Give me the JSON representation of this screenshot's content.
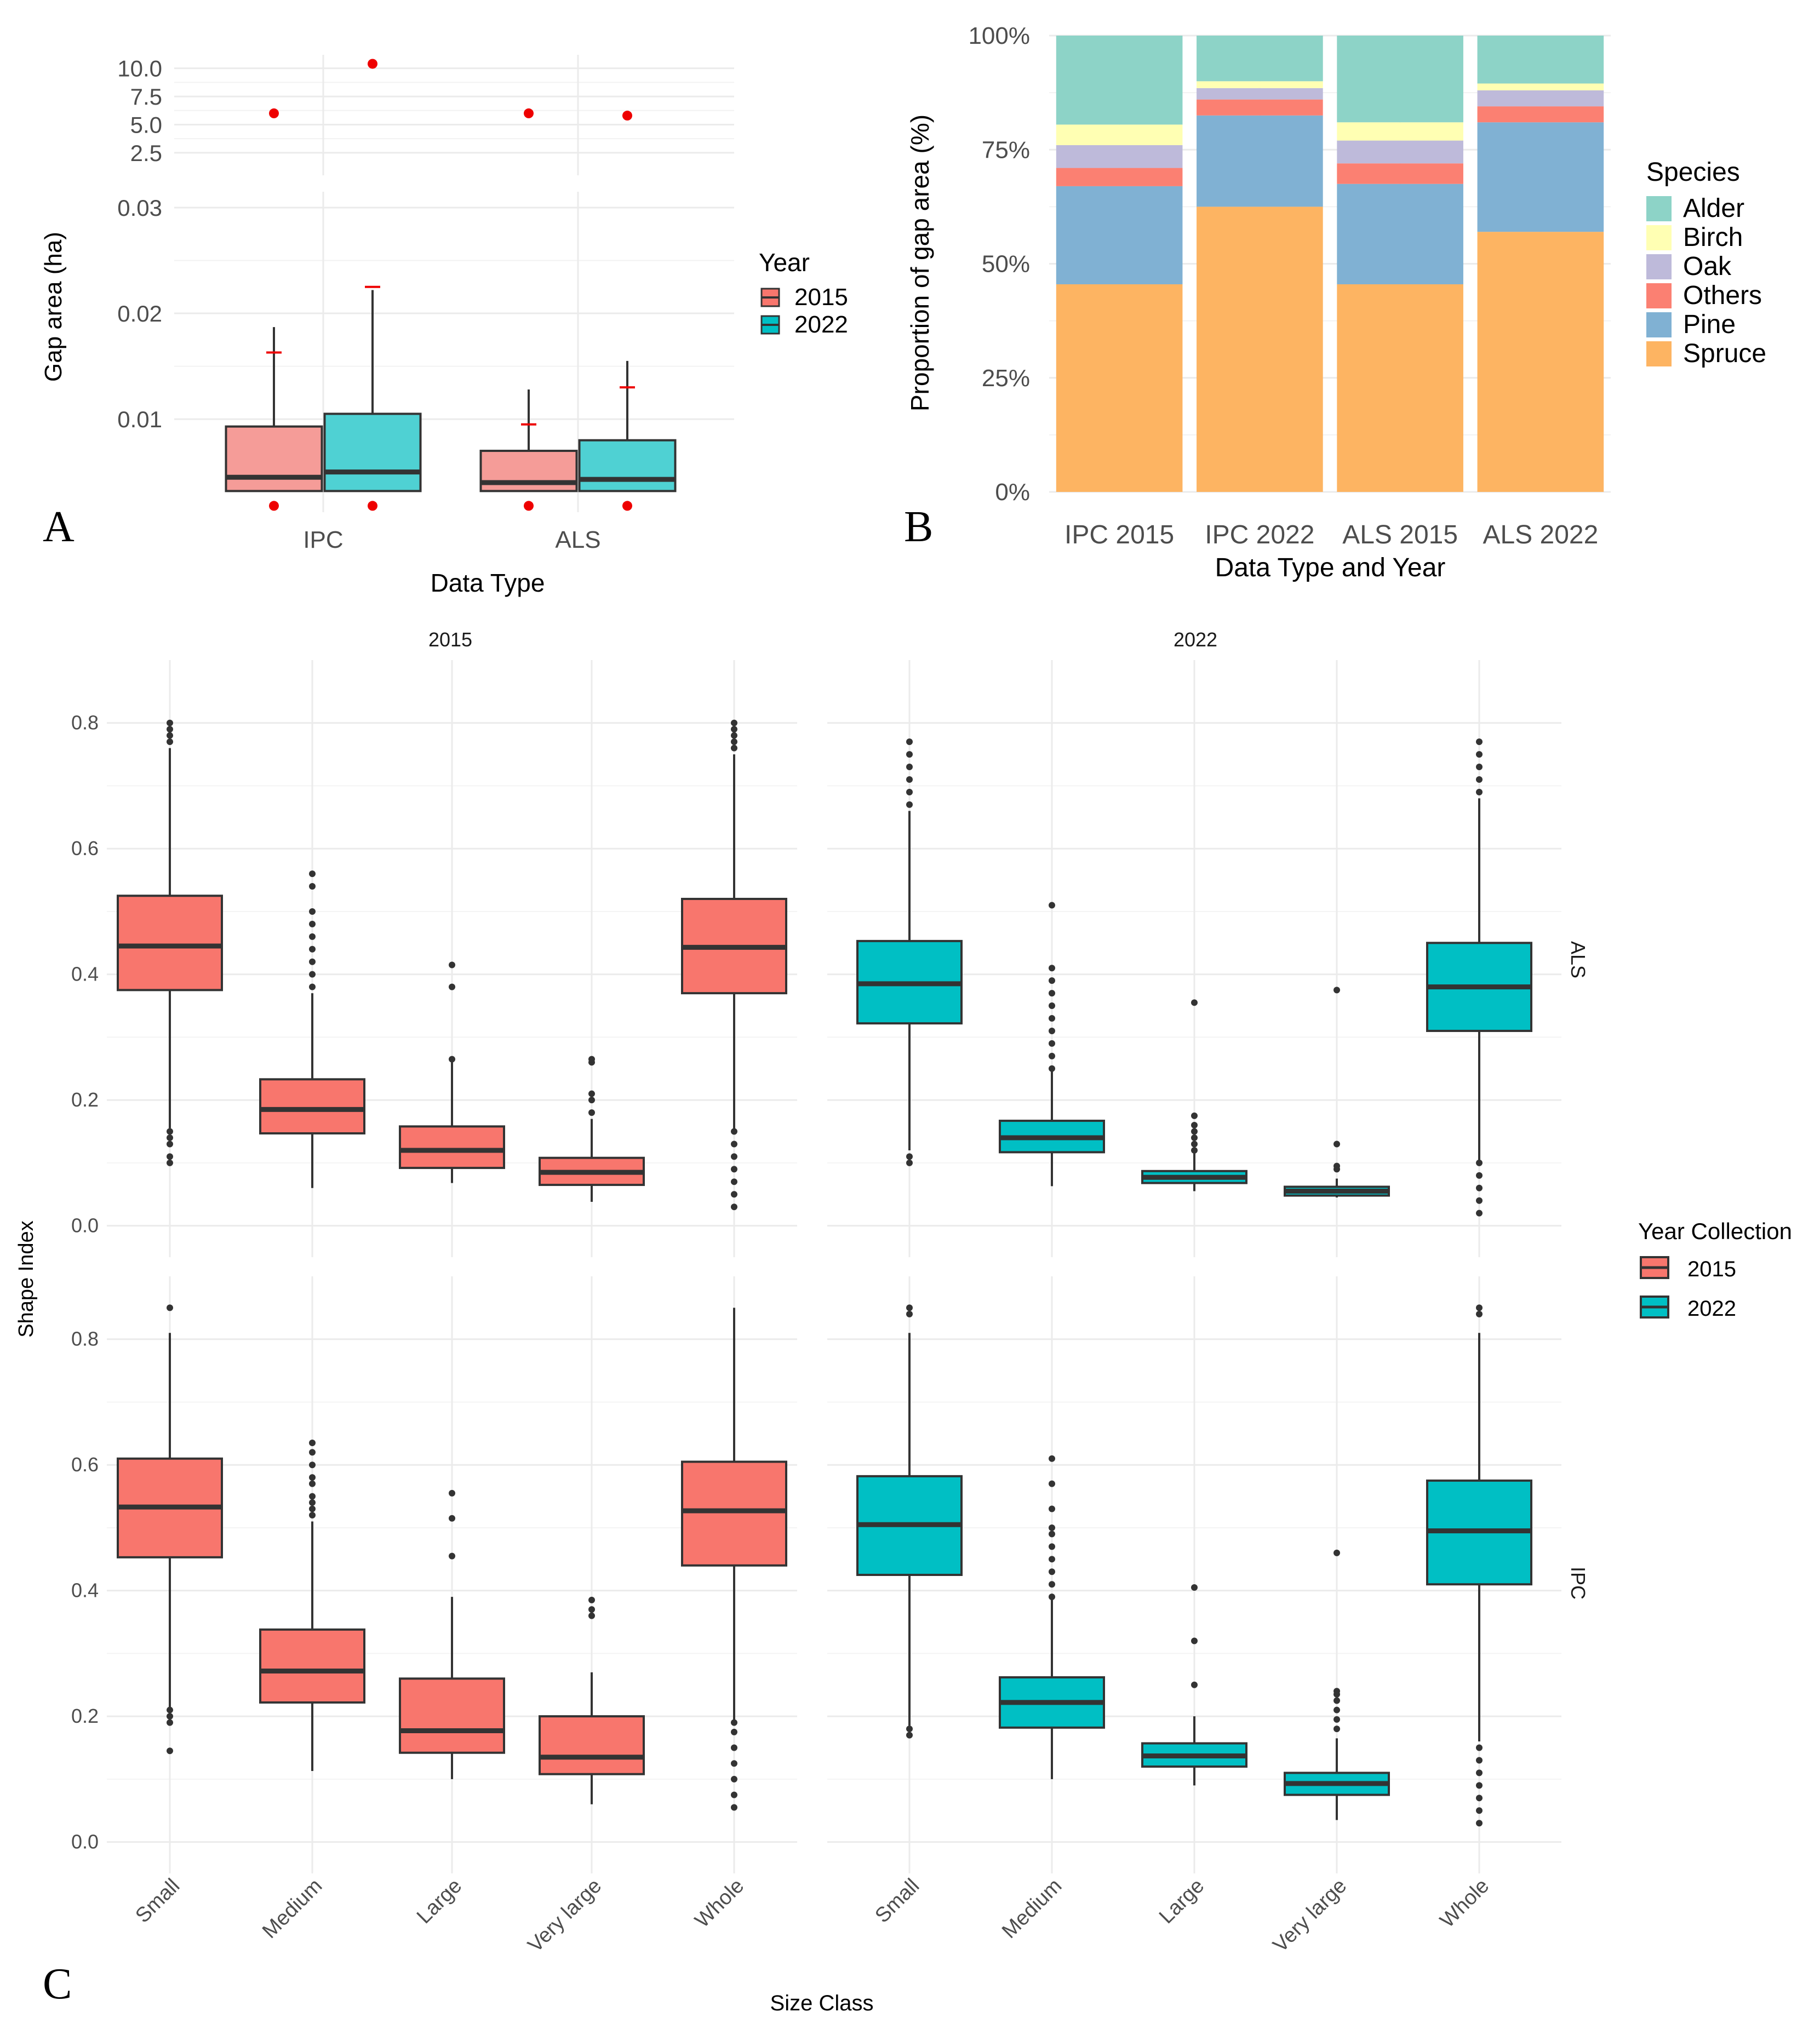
{
  "figure": {
    "panel_letters": {
      "a": "A",
      "b": "B",
      "c": "C"
    },
    "colors": {
      "c2015": "#f8766d",
      "c2015_light": "#f59c98",
      "c2022": "#00bfc4",
      "c2022_light": "#4fd1d3",
      "outlier_red": "#ee0000",
      "box_line": "#333333",
      "grid": "#ebebeb",
      "Alder": "#8dd3c7",
      "Birch": "#ffffb3",
      "Oak": "#bebada",
      "Others": "#fb8072",
      "Pine": "#80b1d3",
      "Spruce": "#fdb462"
    }
  },
  "chart_data": [
    {
      "id": "A",
      "type": "box",
      "title": "",
      "xlabel": "Data Type",
      "ylabel": "Gap area (ha)",
      "categories": [
        "IPC",
        "ALS"
      ],
      "legend": {
        "title": "Year",
        "position": "right",
        "entries": [
          "2015",
          "2022"
        ]
      },
      "upper_axis": {
        "ylim": [
          0.5,
          11.2
        ],
        "ticks": [
          2.5,
          5.0,
          7.5,
          10.0
        ],
        "tick_labels": [
          "2.5",
          "5.0",
          "7.5",
          "10.0"
        ]
      },
      "lower_axis": {
        "ylim": [
          0.0012,
          0.0315
        ],
        "ticks": [
          0.01,
          0.02,
          0.03
        ],
        "tick_labels": [
          "0.01",
          "0.02",
          "0.03"
        ]
      },
      "series": [
        {
          "name": "2015",
          "boxes": [
            {
              "category": "IPC",
              "whisker_low": 0.0032,
              "q1": 0.0032,
              "median": 0.0045,
              "q3": 0.0093,
              "whisker_high": 0.0187,
              "mean": 0.0163,
              "low_point": 0.0018,
              "extreme": 6.0
            },
            {
              "category": "ALS",
              "whisker_low": 0.0032,
              "q1": 0.0032,
              "median": 0.004,
              "q3": 0.007,
              "whisker_high": 0.0128,
              "mean": 0.0095,
              "low_point": 0.0018,
              "extreme": 6.0
            }
          ]
        },
        {
          "name": "2022",
          "boxes": [
            {
              "category": "IPC",
              "whisker_low": 0.0032,
              "q1": 0.0032,
              "median": 0.005,
              "q3": 0.0105,
              "whisker_high": 0.0222,
              "mean": 0.0225,
              "low_point": 0.0018,
              "extreme": 10.4
            },
            {
              "category": "ALS",
              "whisker_low": 0.0032,
              "q1": 0.0032,
              "median": 0.0043,
              "q3": 0.008,
              "whisker_high": 0.0155,
              "mean": 0.013,
              "low_point": 0.0018,
              "extreme": 5.8
            }
          ]
        }
      ]
    },
    {
      "id": "B",
      "type": "stacked_bar",
      "title": "",
      "xlabel": "Data Type and Year",
      "ylabel": "Proportion of gap area (%)",
      "ylim": [
        0,
        100
      ],
      "ticks": [
        0,
        25,
        50,
        75,
        100
      ],
      "tick_labels": [
        "0%",
        "25%",
        "50%",
        "75%",
        "100%"
      ],
      "categories": [
        "IPC 2015",
        "IPC 2022",
        "ALS 2015",
        "ALS 2022"
      ],
      "legend": {
        "title": "Species",
        "position": "right",
        "entries": [
          "Alder",
          "Birch",
          "Oak",
          "Others",
          "Pine",
          "Spruce"
        ]
      },
      "series": [
        {
          "name": "Spruce",
          "values": [
            45.5,
            62.5,
            45.5,
            57.0
          ]
        },
        {
          "name": "Pine",
          "values": [
            21.5,
            20.0,
            22.0,
            24.0
          ]
        },
        {
          "name": "Others",
          "values": [
            4.0,
            3.5,
            4.5,
            3.5
          ]
        },
        {
          "name": "Oak",
          "values": [
            5.0,
            2.5,
            5.0,
            3.5
          ]
        },
        {
          "name": "Birch",
          "values": [
            4.5,
            1.5,
            4.0,
            1.5
          ]
        },
        {
          "name": "Alder",
          "values": [
            19.5,
            10.0,
            19.0,
            10.5
          ]
        }
      ]
    },
    {
      "id": "C",
      "type": "box",
      "title": "",
      "xlabel": "Size Class",
      "ylabel": "Shape Index",
      "facet_cols": [
        "2015",
        "2022"
      ],
      "facet_rows": [
        "ALS",
        "IPC"
      ],
      "categories": [
        "Small",
        "Medium",
        "Large",
        "Very large",
        "Whole"
      ],
      "ylim": [
        -0.05,
        0.9
      ],
      "ticks": [
        0.0,
        0.2,
        0.4,
        0.6,
        0.8
      ],
      "tick_labels": [
        "0.0",
        "0.2",
        "0.4",
        "0.6",
        "0.8"
      ],
      "legend": {
        "title": "Year Collection",
        "position": "right",
        "entries": [
          "2015",
          "2022"
        ]
      },
      "panels": [
        {
          "row": "ALS",
          "col": "2015",
          "boxes": [
            {
              "category": "Small",
              "whisker_low": 0.155,
              "q1": 0.375,
              "median": 0.445,
              "q3": 0.525,
              "whisker_high": 0.76,
              "out_low": [
                0.1,
                0.11,
                0.13,
                0.14,
                0.15
              ],
              "out_high": [
                0.77,
                0.78,
                0.79,
                0.8
              ]
            },
            {
              "category": "Medium",
              "whisker_low": 0.06,
              "q1": 0.147,
              "median": 0.185,
              "q3": 0.233,
              "whisker_high": 0.37,
              "out_low": [],
              "out_high": [
                0.38,
                0.4,
                0.42,
                0.44,
                0.46,
                0.48,
                0.5,
                0.54,
                0.56
              ]
            },
            {
              "category": "Large",
              "whisker_low": 0.068,
              "q1": 0.092,
              "median": 0.12,
              "q3": 0.158,
              "whisker_high": 0.26,
              "out_low": [],
              "out_high": [
                0.265,
                0.38,
                0.415
              ]
            },
            {
              "category": "Very large",
              "whisker_low": 0.038,
              "q1": 0.065,
              "median": 0.085,
              "q3": 0.108,
              "whisker_high": 0.17,
              "out_low": [],
              "out_high": [
                0.18,
                0.2,
                0.21,
                0.26,
                0.265
              ]
            },
            {
              "category": "Whole",
              "whisker_low": 0.15,
              "q1": 0.37,
              "median": 0.443,
              "q3": 0.52,
              "whisker_high": 0.75,
              "out_low": [
                0.03,
                0.05,
                0.07,
                0.09,
                0.11,
                0.13,
                0.15
              ],
              "out_high": [
                0.76,
                0.77,
                0.78,
                0.79,
                0.8
              ]
            }
          ]
        },
        {
          "row": "ALS",
          "col": "2022",
          "boxes": [
            {
              "category": "Small",
              "whisker_low": 0.12,
              "q1": 0.322,
              "median": 0.385,
              "q3": 0.453,
              "whisker_high": 0.66,
              "out_low": [
                0.1,
                0.11
              ],
              "out_high": [
                0.67,
                0.69,
                0.71,
                0.73,
                0.75,
                0.77
              ]
            },
            {
              "category": "Medium",
              "whisker_low": 0.063,
              "q1": 0.117,
              "median": 0.14,
              "q3": 0.167,
              "whisker_high": 0.245,
              "out_low": [],
              "out_high": [
                0.25,
                0.27,
                0.29,
                0.31,
                0.33,
                0.35,
                0.37,
                0.39,
                0.41,
                0.51
              ]
            },
            {
              "category": "Large",
              "whisker_low": 0.055,
              "q1": 0.068,
              "median": 0.077,
              "q3": 0.087,
              "whisker_high": 0.115,
              "out_low": [],
              "out_high": [
                0.12,
                0.13,
                0.14,
                0.15,
                0.16,
                0.175,
                0.355
              ]
            },
            {
              "category": "Very large",
              "whisker_low": 0.045,
              "q1": 0.048,
              "median": 0.055,
              "q3": 0.062,
              "whisker_high": 0.075,
              "out_low": [],
              "out_high": [
                0.09,
                0.095,
                0.13,
                0.375
              ]
            },
            {
              "category": "Whole",
              "whisker_low": 0.1,
              "q1": 0.31,
              "median": 0.38,
              "q3": 0.45,
              "whisker_high": 0.68,
              "out_low": [
                0.02,
                0.04,
                0.06,
                0.08,
                0.1
              ],
              "out_high": [
                0.69,
                0.71,
                0.73,
                0.75,
                0.77
              ]
            }
          ]
        },
        {
          "row": "IPC",
          "col": "2015",
          "boxes": [
            {
              "category": "Small",
              "whisker_low": 0.215,
              "q1": 0.453,
              "median": 0.533,
              "q3": 0.61,
              "whisker_high": 0.81,
              "out_low": [
                0.145,
                0.19,
                0.2,
                0.21
              ],
              "out_high": [
                0.85
              ]
            },
            {
              "category": "Medium",
              "whisker_low": 0.113,
              "q1": 0.222,
              "median": 0.272,
              "q3": 0.338,
              "whisker_high": 0.51,
              "out_low": [],
              "out_high": [
                0.52,
                0.53,
                0.54,
                0.55,
                0.57,
                0.58,
                0.6,
                0.62,
                0.635
              ]
            },
            {
              "category": "Large",
              "whisker_low": 0.1,
              "q1": 0.142,
              "median": 0.177,
              "q3": 0.26,
              "whisker_high": 0.39,
              "out_low": [],
              "out_high": [
                0.455,
                0.515,
                0.555
              ]
            },
            {
              "category": "Very large",
              "whisker_low": 0.06,
              "q1": 0.108,
              "median": 0.135,
              "q3": 0.2,
              "whisker_high": 0.27,
              "out_low": [],
              "out_high": [
                0.36,
                0.37,
                0.385
              ]
            },
            {
              "category": "Whole",
              "whisker_low": 0.19,
              "q1": 0.44,
              "median": 0.527,
              "q3": 0.605,
              "whisker_high": 0.85,
              "out_low": [
                0.055,
                0.075,
                0.1,
                0.125,
                0.15,
                0.175,
                0.19
              ],
              "out_high": []
            }
          ]
        },
        {
          "row": "IPC",
          "col": "2022",
          "boxes": [
            {
              "category": "Small",
              "whisker_low": 0.185,
              "q1": 0.425,
              "median": 0.505,
              "q3": 0.582,
              "whisker_high": 0.81,
              "out_low": [
                0.17,
                0.18
              ],
              "out_high": [
                0.84,
                0.85
              ]
            },
            {
              "category": "Medium",
              "whisker_low": 0.1,
              "q1": 0.182,
              "median": 0.222,
              "q3": 0.262,
              "whisker_high": 0.385,
              "out_low": [],
              "out_high": [
                0.39,
                0.41,
                0.43,
                0.45,
                0.47,
                0.49,
                0.5,
                0.53,
                0.57,
                0.61
              ]
            },
            {
              "category": "Large",
              "whisker_low": 0.09,
              "q1": 0.12,
              "median": 0.137,
              "q3": 0.157,
              "whisker_high": 0.2,
              "out_low": [],
              "out_high": [
                0.25,
                0.32,
                0.405
              ]
            },
            {
              "category": "Very large",
              "whisker_low": 0.035,
              "q1": 0.075,
              "median": 0.093,
              "q3": 0.11,
              "whisker_high": 0.165,
              "out_low": [],
              "out_high": [
                0.18,
                0.195,
                0.21,
                0.225,
                0.235,
                0.24,
                0.46
              ]
            },
            {
              "category": "Whole",
              "whisker_low": 0.16,
              "q1": 0.41,
              "median": 0.495,
              "q3": 0.575,
              "whisker_high": 0.81,
              "out_low": [
                0.03,
                0.05,
                0.07,
                0.09,
                0.11,
                0.13,
                0.15
              ],
              "out_high": [
                0.84,
                0.85
              ]
            }
          ]
        }
      ]
    }
  ]
}
